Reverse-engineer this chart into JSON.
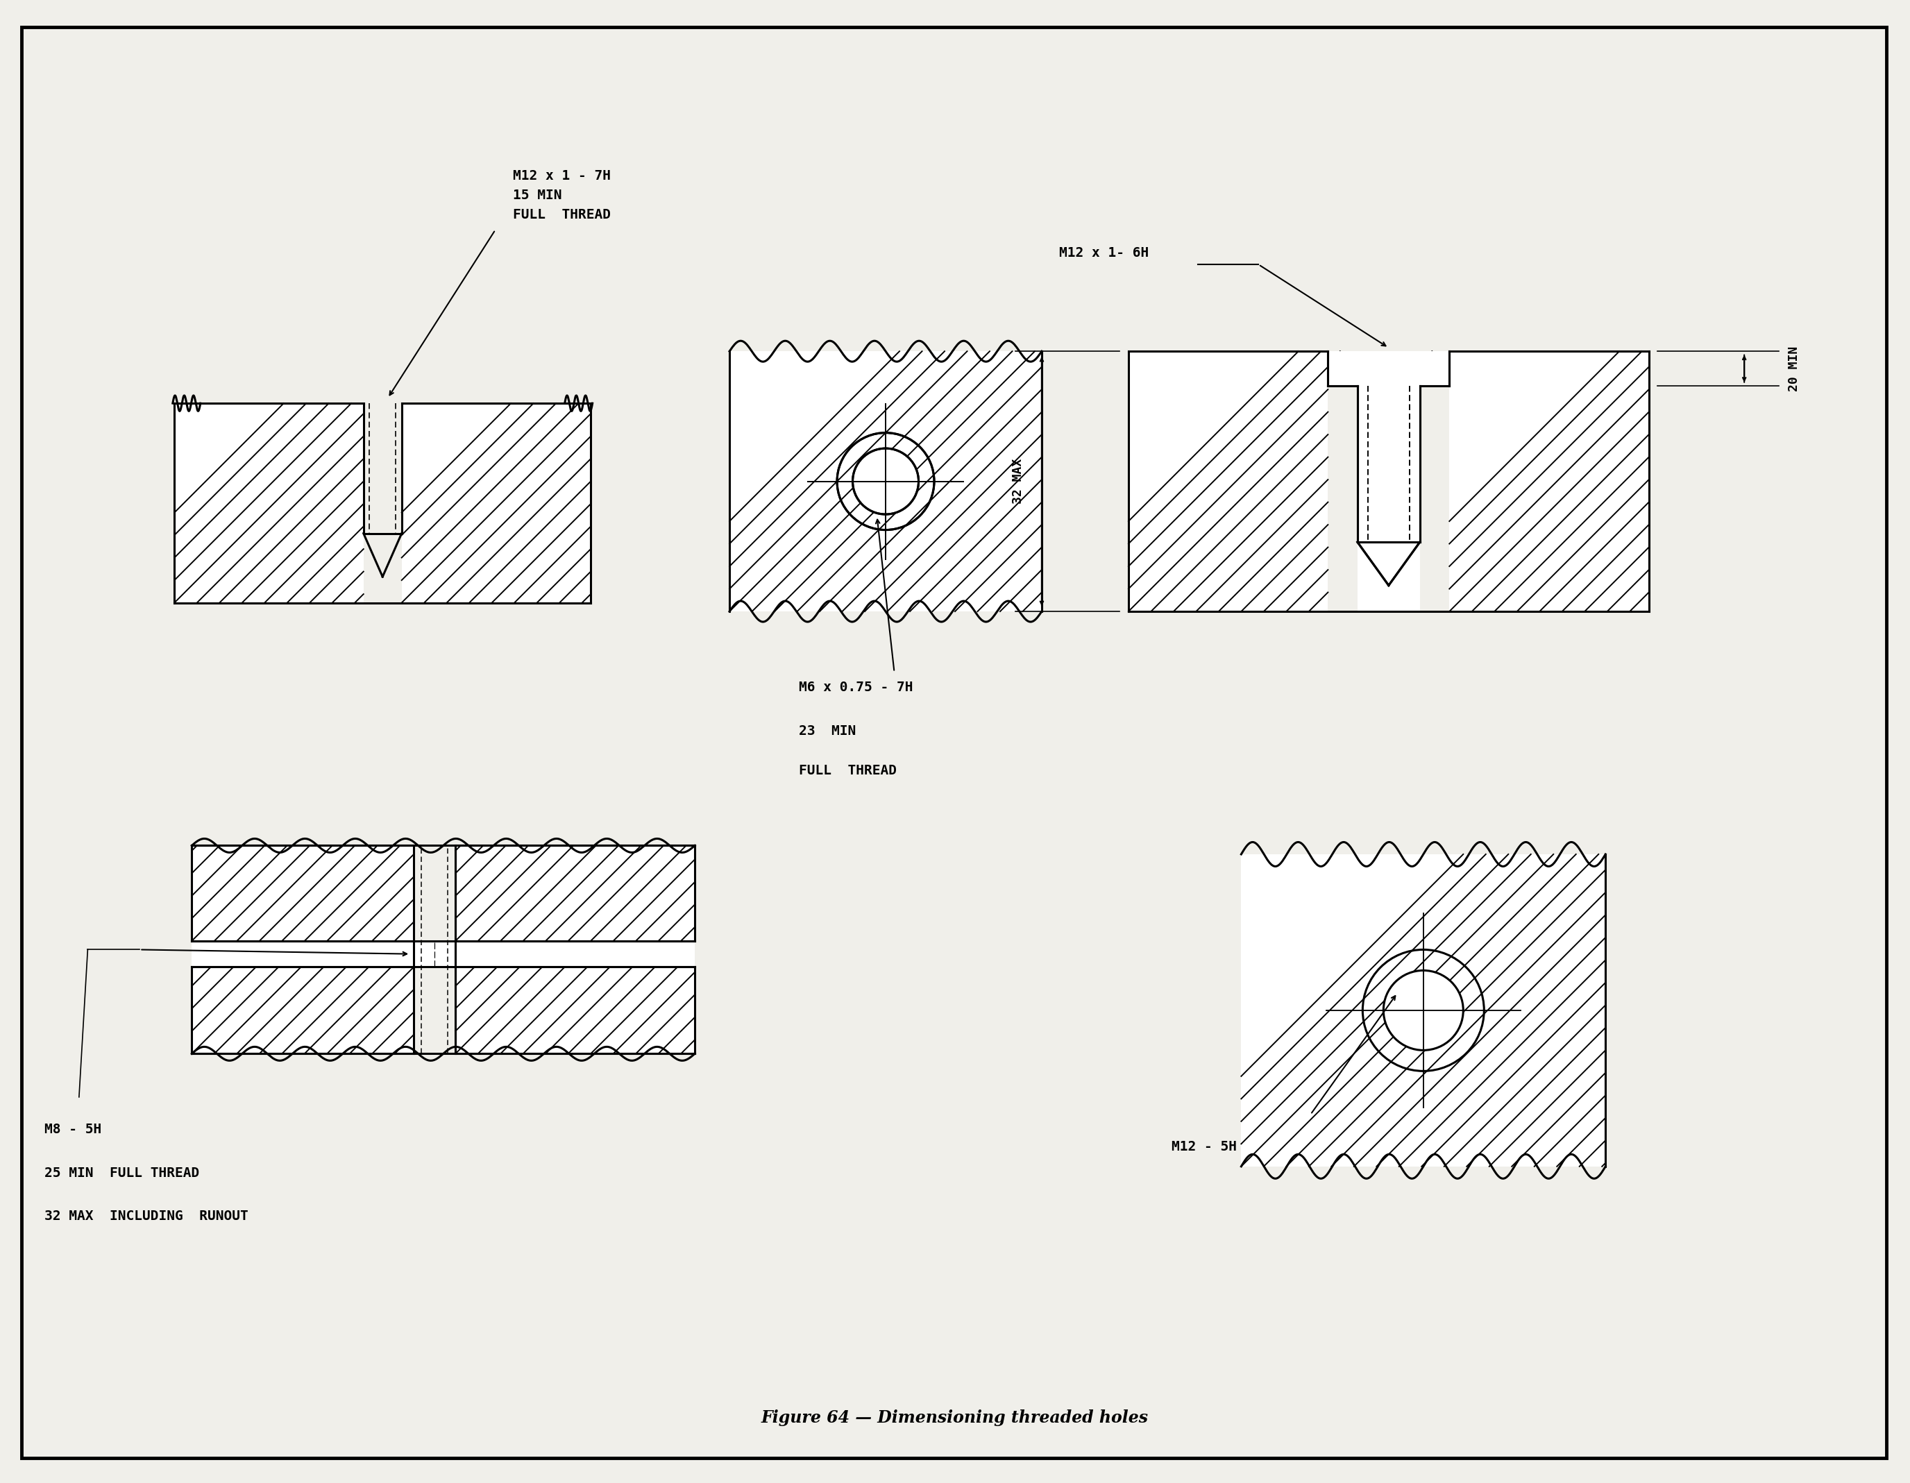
{
  "title": "Figure 64 — Dimensioning threaded holes",
  "bg_color": "#f0efea",
  "line_color": "#000000",
  "font_family": "monospace",
  "annotations": {
    "top_left": "M12 x 1 - 7H\n15 MIN\nFULL  THREAD",
    "top_center_line1": "M6 x 0.75 - 7H",
    "top_center_line2": "23  MIN",
    "top_center_line3": "FULL  THREAD",
    "top_right_label": "M12 x 1- 6H",
    "top_right_dim1": "20 MIN",
    "top_right_dim2": "32 MAX",
    "bottom_left_label": "M8 - 5H",
    "bottom_left_line2": "25 MIN  FULL THREAD",
    "bottom_left_line3": "32 MAX  INCLUDING  RUNOUT",
    "bottom_right_label": "M12 - 5H"
  }
}
